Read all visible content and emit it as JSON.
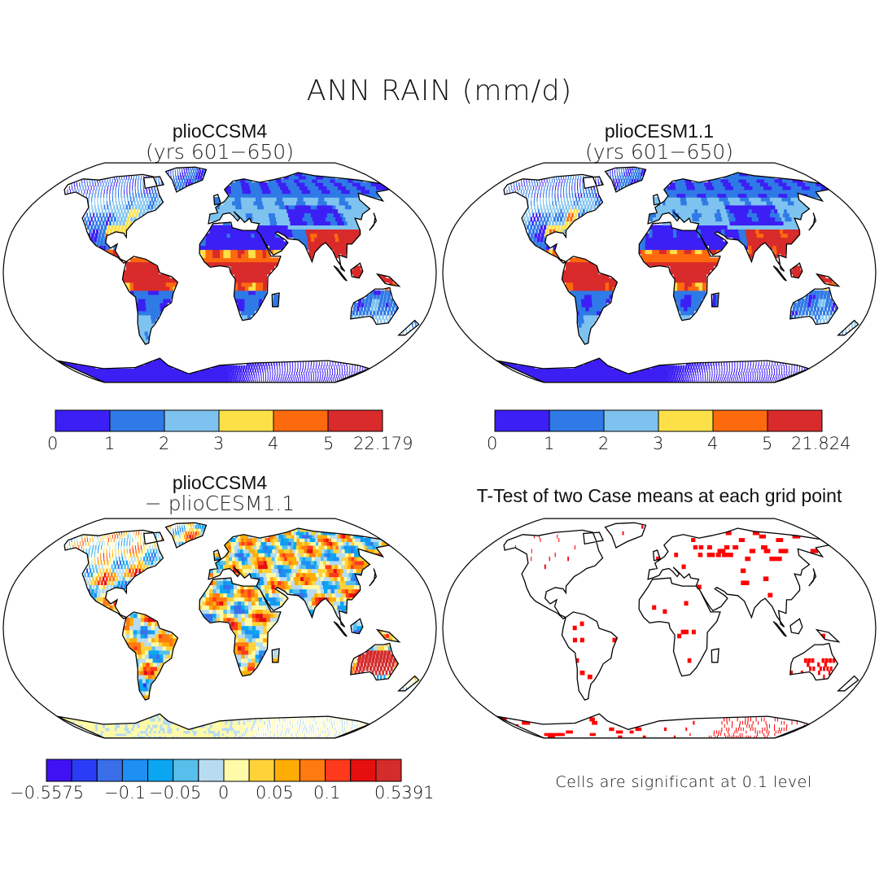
{
  "figure_title": "ANN RAIN (mm/d)",
  "panels": {
    "top_left": {
      "title": "plioCCSM4",
      "subtitle": "(yrs 601−650)"
    },
    "top_right": {
      "title": "plioCESM1.1",
      "subtitle": "(yrs 601−650)"
    },
    "bottom_left": {
      "title": "plioCCSM4",
      "subtitle": "− plioCESM1.1"
    },
    "bottom_right": {
      "title": "T-Test of two Case means at each grid point",
      "note": "Cells are significant at 0.1 level"
    }
  },
  "colorbars": {
    "rain_ccsm4": {
      "colors": [
        "#3c1ff5",
        "#2f7ae6",
        "#7ec3f0",
        "#fde047",
        "#fd6a0e",
        "#d92b2b"
      ],
      "labels": [
        "0",
        "1",
        "2",
        "3",
        "4",
        "5",
        "22.179"
      ]
    },
    "rain_cesm": {
      "colors": [
        "#3c1ff5",
        "#2f7ae6",
        "#7ec3f0",
        "#fde047",
        "#fd6a0e",
        "#d92b2b"
      ],
      "labels": [
        "0",
        "1",
        "2",
        "3",
        "4",
        "5",
        "21.824"
      ]
    },
    "diff": {
      "colors": [
        "#3f12f3",
        "#2a3cf5",
        "#3a6fe9",
        "#1e8ff3",
        "#0aa6f2",
        "#56bfeb",
        "#b7dcf2",
        "#fffaa8",
        "#ffd23a",
        "#ffad05",
        "#ff7a10",
        "#ff3a1c",
        "#e50f0f",
        "#d42b2b"
      ],
      "labels": [
        "−0.5575",
        "−0.1",
        "−0.05",
        "0",
        "0.05",
        "0.1",
        "0.5391"
      ]
    }
  },
  "map_colors": {
    "ocean": "#ffffff",
    "coast": "#000000",
    "significant": "#ff0000"
  }
}
